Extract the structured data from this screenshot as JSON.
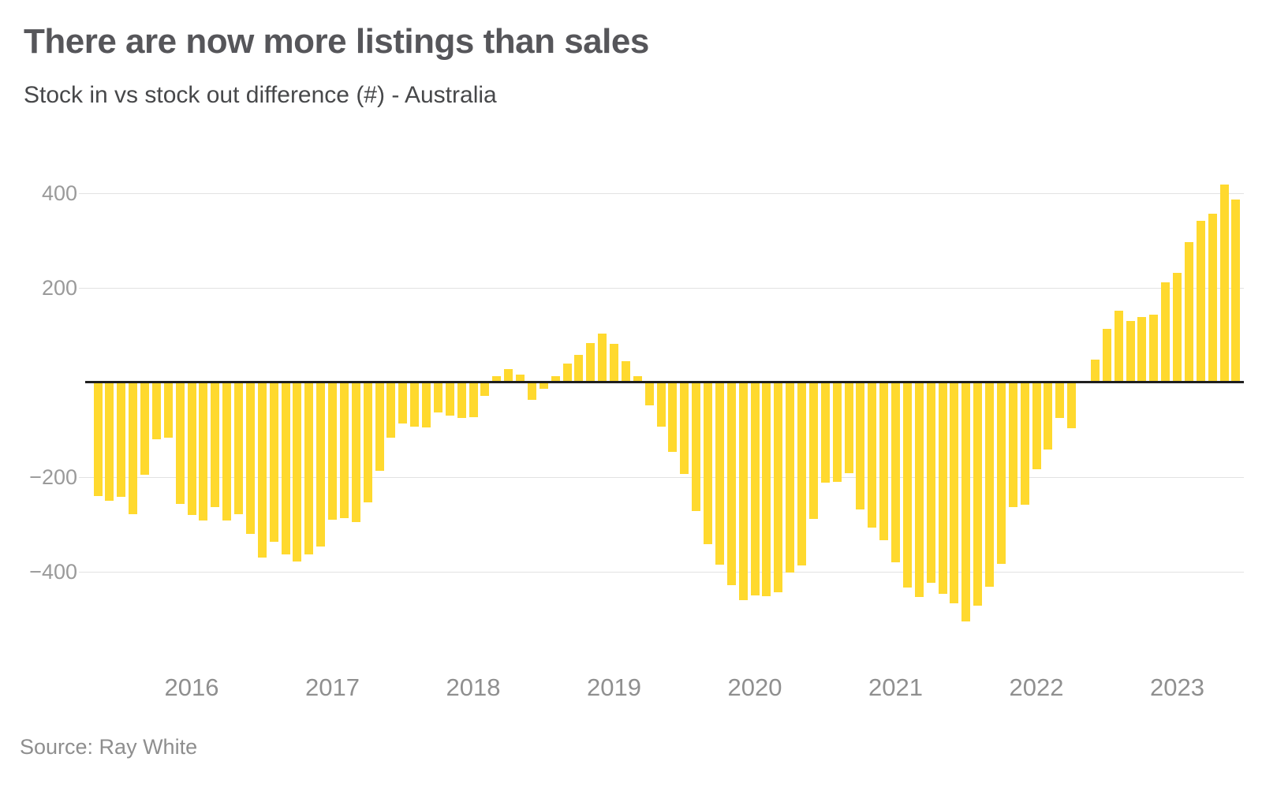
{
  "header": {
    "title": "There are now more listings than sales",
    "subtitle": "Stock in vs stock out difference (#) - Australia"
  },
  "footer": {
    "source": "Source: Ray White"
  },
  "chart_data": {
    "type": "bar",
    "title": "There are now more listings than sales",
    "subtitle": "Stock in vs stock out difference (#) - Australia",
    "source": "Ray White",
    "ylabel": "Stock in vs stock out difference (#)",
    "ylim": [
      -520,
      450
    ],
    "grid": true,
    "legend_position": "none",
    "x": [
      "2015-05",
      "2015-06",
      "2015-07",
      "2015-08",
      "2015-09",
      "2015-10",
      "2015-11",
      "2015-12",
      "2016-01",
      "2016-02",
      "2016-03",
      "2016-04",
      "2016-05",
      "2016-06",
      "2016-07",
      "2016-08",
      "2016-09",
      "2016-10",
      "2016-11",
      "2016-12",
      "2017-01",
      "2017-02",
      "2017-03",
      "2017-04",
      "2017-05",
      "2017-06",
      "2017-07",
      "2017-08",
      "2017-09",
      "2017-10",
      "2017-11",
      "2017-12",
      "2018-01",
      "2018-02",
      "2018-03",
      "2018-04",
      "2018-05",
      "2018-06",
      "2018-07",
      "2018-08",
      "2018-09",
      "2018-10",
      "2018-11",
      "2018-12",
      "2019-01",
      "2019-02",
      "2019-03",
      "2019-04",
      "2019-05",
      "2019-06",
      "2019-07",
      "2019-08",
      "2019-09",
      "2019-10",
      "2019-11",
      "2019-12",
      "2020-01",
      "2020-02",
      "2020-03",
      "2020-04",
      "2020-05",
      "2020-06",
      "2020-07",
      "2020-08",
      "2020-09",
      "2020-10",
      "2020-11",
      "2020-12",
      "2021-01",
      "2021-02",
      "2021-03",
      "2021-04",
      "2021-05",
      "2021-06",
      "2021-07",
      "2021-08",
      "2021-09",
      "2021-10",
      "2021-11",
      "2021-12",
      "2022-01",
      "2022-02",
      "2022-03",
      "2022-04",
      "2022-05",
      "2022-06",
      "2022-07",
      "2022-08",
      "2022-09",
      "2022-10",
      "2022-11",
      "2022-12",
      "2023-01",
      "2023-02",
      "2023-03",
      "2023-04",
      "2023-05",
      "2023-06"
    ],
    "values": [
      -240,
      -250,
      -242,
      -278,
      -195,
      -120,
      -117,
      -256,
      -280,
      -292,
      -264,
      -292,
      -278,
      -320,
      -370,
      -336,
      -364,
      -378,
      -364,
      -346,
      -290,
      -287,
      -295,
      -253,
      -186,
      -117,
      -86,
      -94,
      -95,
      -64,
      -70,
      -75,
      -73,
      -28,
      14,
      29,
      17,
      -36,
      -13,
      14,
      40,
      58,
      83,
      103,
      82,
      45,
      14,
      -48,
      -93,
      -147,
      -193,
      -272,
      -342,
      -385,
      -428,
      -460,
      -450,
      -451,
      -444,
      -402,
      -386,
      -289,
      -212,
      -210,
      -192,
      -269,
      -306,
      -333,
      -380,
      -433,
      -453,
      -424,
      -447,
      -466,
      -505,
      -472,
      -432,
      -383,
      -264,
      -258,
      -183,
      -142,
      -75,
      -97,
      0,
      48,
      113,
      152,
      130,
      139,
      143,
      211,
      232,
      297,
      341,
      356,
      418,
      387
    ],
    "yticks": [
      {
        "value": 400,
        "label": "400"
      },
      {
        "value": 200,
        "label": "200"
      },
      {
        "value": -200,
        "label": "−200"
      },
      {
        "value": -400,
        "label": "−400"
      }
    ],
    "xticks": [
      {
        "month": "2016-01",
        "label": "2016"
      },
      {
        "month": "2017-01",
        "label": "2017"
      },
      {
        "month": "2018-01",
        "label": "2018"
      },
      {
        "month": "2019-01",
        "label": "2019"
      },
      {
        "month": "2020-01",
        "label": "2020"
      },
      {
        "month": "2021-01",
        "label": "2021"
      },
      {
        "month": "2022-01",
        "label": "2022"
      },
      {
        "month": "2023-01",
        "label": "2023"
      }
    ],
    "colors": {
      "bar": "#FFD92E",
      "axis": "#1f1f1f",
      "grid": "#e2e2e2",
      "y_tick_label": "#9a9a9a",
      "x_tick_label": "#8f8f8f",
      "title": "#56565a",
      "subtitle": "#47484a",
      "source": "#8e8e8e"
    }
  }
}
